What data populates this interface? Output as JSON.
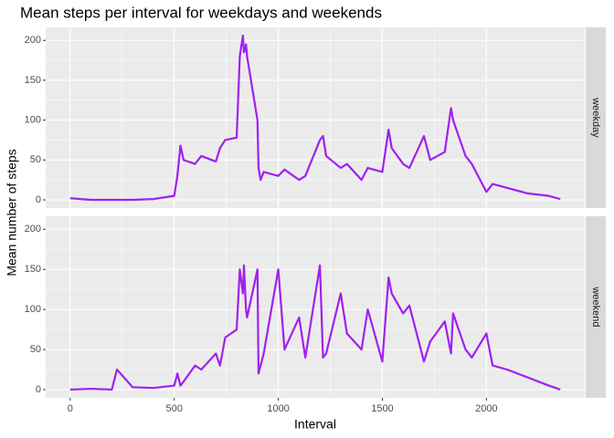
{
  "chart_data": {
    "type": "line",
    "title": "Mean steps per interval for weekdays and weekends",
    "xlabel": "Interval",
    "ylabel": "Mean number of steps",
    "x": [
      0,
      100,
      200,
      225,
      300,
      400,
      500,
      515,
      530,
      545,
      600,
      630,
      700,
      720,
      745,
      800,
      815,
      830,
      835,
      845,
      850,
      900,
      905,
      915,
      930,
      1000,
      1030,
      1100,
      1130,
      1200,
      1215,
      1230,
      1300,
      1330,
      1400,
      1430,
      1500,
      1530,
      1545,
      1600,
      1630,
      1700,
      1730,
      1800,
      1830,
      1840,
      1900,
      1930,
      2000,
      2030,
      2100,
      2200,
      2300,
      2355
    ],
    "series": [
      {
        "name": "weekday",
        "color": "#a020f0",
        "values": [
          2,
          0,
          0,
          0,
          0,
          1,
          5,
          30,
          68,
          50,
          45,
          55,
          48,
          65,
          75,
          78,
          180,
          206,
          185,
          195,
          180,
          100,
          40,
          25,
          35,
          30,
          38,
          25,
          30,
          75,
          80,
          55,
          40,
          45,
          25,
          40,
          35,
          88,
          65,
          45,
          40,
          80,
          50,
          60,
          115,
          100,
          55,
          45,
          10,
          20,
          15,
          8,
          5,
          1
        ]
      },
      {
        "name": "weekend",
        "color": "#a020f0",
        "values": [
          0,
          1,
          0,
          25,
          3,
          2,
          5,
          20,
          5,
          10,
          30,
          25,
          45,
          30,
          65,
          75,
          150,
          120,
          155,
          100,
          90,
          150,
          20,
          30,
          45,
          150,
          50,
          90,
          40,
          155,
          40,
          45,
          120,
          70,
          50,
          100,
          35,
          140,
          120,
          95,
          105,
          35,
          60,
          85,
          45,
          95,
          50,
          40,
          70,
          30,
          25,
          15,
          5,
          0
        ]
      }
    ],
    "xlim": [
      -117.75,
      2472.75
    ],
    "ylim": [
      -10.3,
      216.3
    ],
    "xticks": [
      0,
      500,
      1000,
      1500,
      2000
    ],
    "yticks": [
      0,
      50,
      100,
      150,
      200
    ],
    "grid": true
  }
}
